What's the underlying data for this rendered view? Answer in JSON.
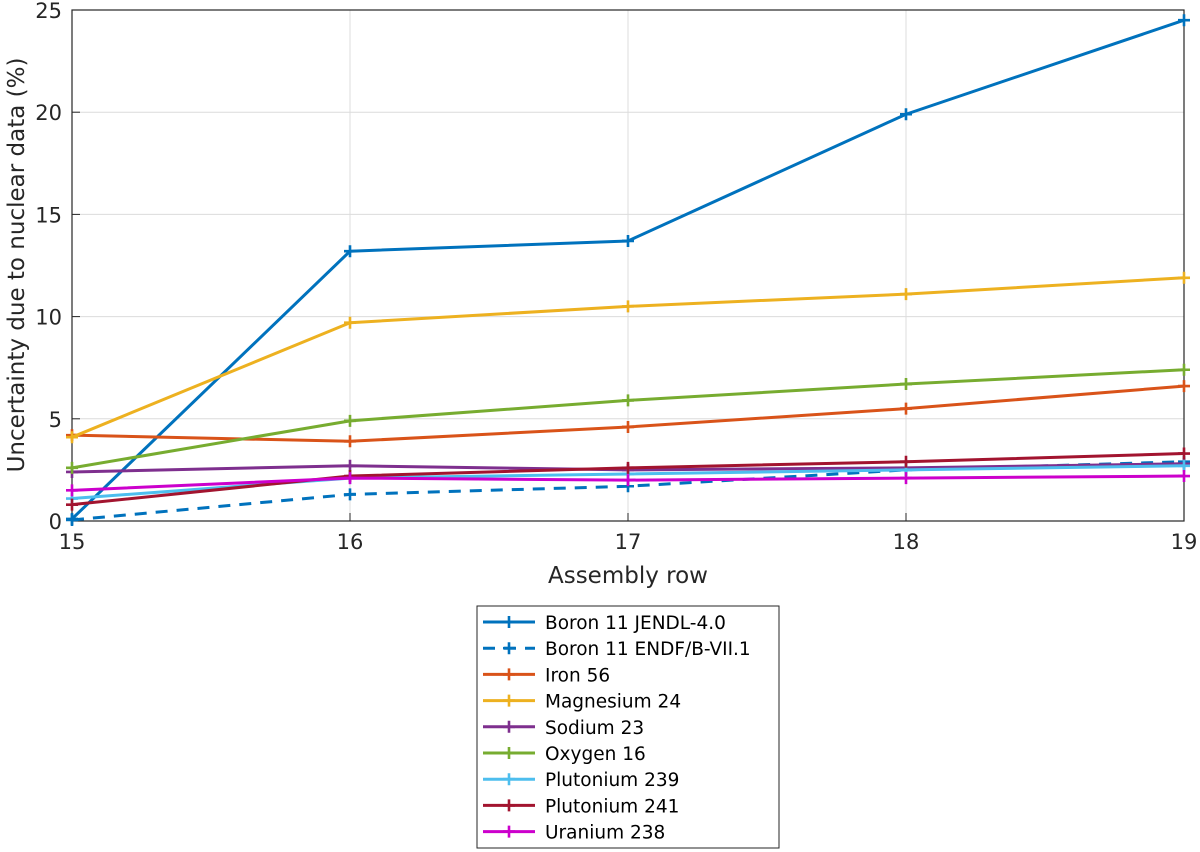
{
  "chart_data": {
    "type": "line",
    "xlabel": "Assembly row",
    "ylabel": "Uncertainty due to nuclear data (%)",
    "xlim": [
      15,
      19
    ],
    "ylim": [
      0,
      25
    ],
    "x_ticks": [
      "15",
      "16",
      "17",
      "18",
      "19"
    ],
    "y_ticks": [
      "0",
      "5",
      "10",
      "15",
      "20",
      "25"
    ],
    "grid": true,
    "legend_position": "bottom-center, below plot",
    "x": [
      15,
      16,
      17,
      18,
      19
    ],
    "series": [
      {
        "name": "Boron 11 JENDL-4.0",
        "color": "#0072BD",
        "dash": "solid",
        "values": [
          0.1,
          13.2,
          13.7,
          19.9,
          24.5
        ]
      },
      {
        "name": "Boron 11 ENDF/B-VII.1",
        "color": "#0072BD",
        "dash": "dashed",
        "values": [
          0.05,
          1.3,
          1.7,
          2.5,
          2.9
        ]
      },
      {
        "name": "Iron 56",
        "color": "#D95319",
        "dash": "solid",
        "values": [
          4.2,
          3.9,
          4.6,
          5.5,
          6.6
        ]
      },
      {
        "name": "Magnesium 24",
        "color": "#EDB120",
        "dash": "solid",
        "values": [
          4.1,
          9.7,
          10.5,
          11.1,
          11.9
        ]
      },
      {
        "name": "Sodium 23",
        "color": "#7E2F8E",
        "dash": "solid",
        "values": [
          2.4,
          2.7,
          2.5,
          2.6,
          2.8
        ]
      },
      {
        "name": "Oxygen 16",
        "color": "#77AC30",
        "dash": "solid",
        "values": [
          2.6,
          4.9,
          5.9,
          6.7,
          7.4
        ]
      },
      {
        "name": "Plutonium 239",
        "color": "#4DBEEE",
        "dash": "solid",
        "values": [
          1.1,
          2.1,
          2.3,
          2.5,
          2.7
        ]
      },
      {
        "name": "Plutonium 241",
        "color": "#A2142F",
        "dash": "solid",
        "values": [
          0.8,
          2.2,
          2.6,
          2.9,
          3.3
        ]
      },
      {
        "name": "Uranium 238",
        "color": "#CC00CC",
        "dash": "solid",
        "values": [
          1.5,
          2.1,
          2.0,
          2.1,
          2.2
        ]
      }
    ]
  }
}
